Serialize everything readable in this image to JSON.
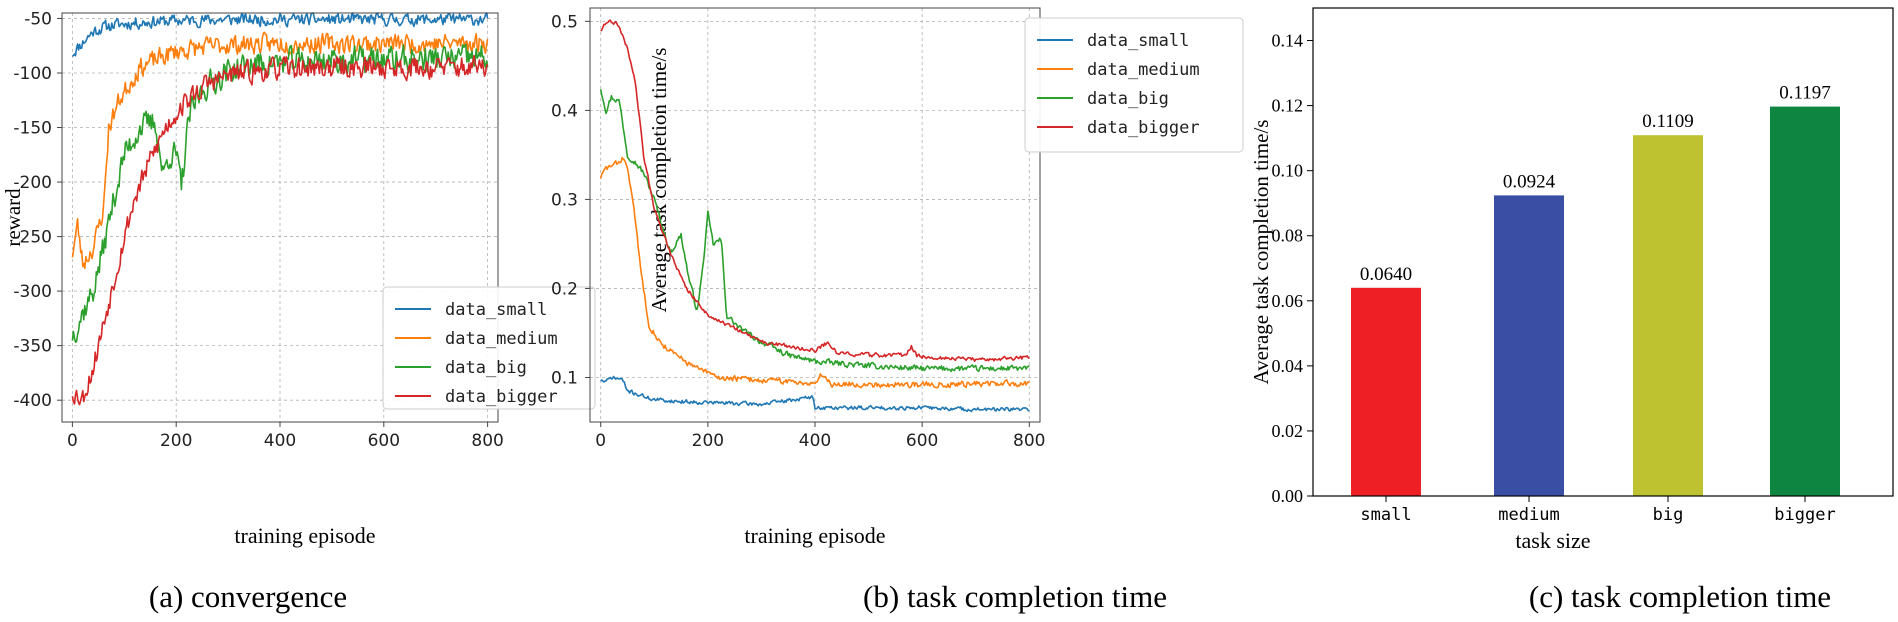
{
  "colors": {
    "data_small": "#1f77b4",
    "data_medium": "#ff7f0e",
    "data_big": "#2ca02c",
    "data_bigger": "#d62728",
    "bar_small": "#ee2026",
    "bar_medium": "#3a4fa3",
    "bar_big": "#bec231",
    "bar_bigger": "#0e8641",
    "grid": "#b0b0b0"
  },
  "captions": [
    "(a) convergence",
    "(b) task completion time",
    "(c) task completion time"
  ],
  "chart_data": [
    {
      "type": "line",
      "xlabel": "training episode",
      "ylabel": "reward",
      "xlim": [
        -20,
        820
      ],
      "ylim": [
        -420,
        -45
      ],
      "xticks": [
        0,
        200,
        400,
        600,
        800
      ],
      "yticks": [
        -50,
        -100,
        -150,
        -200,
        -250,
        -300,
        -350,
        -400
      ],
      "grid": true,
      "legend": "bottom-right",
      "series": [
        {
          "name": "data_small",
          "color_key": "data_small",
          "noise": 5,
          "seed": 11,
          "points": [
            [
              0,
              -82
            ],
            [
              20,
              -72
            ],
            [
              40,
              -62
            ],
            [
              60,
              -58
            ],
            [
              80,
              -56
            ],
            [
              120,
              -54
            ],
            [
              200,
              -52
            ],
            [
              300,
              -51
            ],
            [
              400,
              -51
            ],
            [
              500,
              -51
            ],
            [
              600,
              -51
            ],
            [
              700,
              -51
            ],
            [
              800,
              -51
            ]
          ]
        },
        {
          "name": "data_medium",
          "color_key": "data_medium",
          "noise": 8,
          "seed": 23,
          "points": [
            [
              0,
              -265
            ],
            [
              10,
              -240
            ],
            [
              20,
              -275
            ],
            [
              40,
              -260
            ],
            [
              60,
              -225
            ],
            [
              70,
              -150
            ],
            [
              90,
              -125
            ],
            [
              110,
              -110
            ],
            [
              130,
              -95
            ],
            [
              160,
              -88
            ],
            [
              200,
              -80
            ],
            [
              260,
              -76
            ],
            [
              300,
              -74
            ],
            [
              400,
              -73
            ],
            [
              500,
              -73
            ],
            [
              600,
              -73
            ],
            [
              700,
              -73
            ],
            [
              800,
              -72
            ]
          ]
        },
        {
          "name": "data_big",
          "color_key": "data_big",
          "noise": 11,
          "seed": 37,
          "points": [
            [
              0,
              -340
            ],
            [
              20,
              -320
            ],
            [
              40,
              -300
            ],
            [
              60,
              -260
            ],
            [
              80,
              -215
            ],
            [
              100,
              -175
            ],
            [
              130,
              -150
            ],
            [
              160,
              -145
            ],
            [
              175,
              -195
            ],
            [
              185,
              -175
            ],
            [
              200,
              -175
            ],
            [
              210,
              -205
            ],
            [
              225,
              -140
            ],
            [
              250,
              -115
            ],
            [
              300,
              -98
            ],
            [
              350,
              -92
            ],
            [
              400,
              -90
            ],
            [
              500,
              -88
            ],
            [
              600,
              -88
            ],
            [
              700,
              -87
            ],
            [
              800,
              -86
            ]
          ]
        },
        {
          "name": "data_bigger",
          "color_key": "data_bigger",
          "noise": 9,
          "seed": 53,
          "points": [
            [
              0,
              -392
            ],
            [
              20,
              -398
            ],
            [
              40,
              -370
            ],
            [
              60,
              -330
            ],
            [
              80,
              -290
            ],
            [
              100,
              -250
            ],
            [
              120,
              -215
            ],
            [
              150,
              -180
            ],
            [
              180,
              -150
            ],
            [
              210,
              -130
            ],
            [
              260,
              -110
            ],
            [
              300,
              -102
            ],
            [
              400,
              -96
            ],
            [
              500,
              -95
            ],
            [
              600,
              -95
            ],
            [
              700,
              -95
            ],
            [
              800,
              -95
            ]
          ]
        }
      ]
    },
    {
      "type": "line",
      "xlabel": "training episode",
      "ylabel": "Average task completion time/s",
      "xlim": [
        -20,
        820
      ],
      "ylim": [
        0.05,
        0.515
      ],
      "xticks": [
        0,
        200,
        400,
        600,
        800
      ],
      "yticks": [
        0.1,
        0.2,
        0.3,
        0.4,
        0.5
      ],
      "grid": true,
      "legend": "top-right",
      "series": [
        {
          "name": "data_small",
          "color_key": "data_small",
          "noise": 0.002,
          "seed": 71,
          "points": [
            [
              0,
              0.097
            ],
            [
              10,
              0.095
            ],
            [
              20,
              0.1
            ],
            [
              40,
              0.098
            ],
            [
              50,
              0.085
            ],
            [
              100,
              0.075
            ],
            [
              150,
              0.073
            ],
            [
              200,
              0.072
            ],
            [
              300,
              0.07
            ],
            [
              395,
              0.078
            ],
            [
              400,
              0.066
            ],
            [
              500,
              0.066
            ],
            [
              600,
              0.066
            ],
            [
              700,
              0.064
            ],
            [
              800,
              0.064
            ]
          ]
        },
        {
          "name": "data_medium",
          "color_key": "data_medium",
          "noise": 0.003,
          "seed": 83,
          "points": [
            [
              0,
              0.325
            ],
            [
              10,
              0.335
            ],
            [
              30,
              0.34
            ],
            [
              45,
              0.348
            ],
            [
              60,
              0.3
            ],
            [
              75,
              0.22
            ],
            [
              90,
              0.16
            ],
            [
              110,
              0.14
            ],
            [
              140,
              0.125
            ],
            [
              180,
              0.11
            ],
            [
              220,
              0.1
            ],
            [
              300,
              0.097
            ],
            [
              400,
              0.094
            ],
            [
              415,
              0.104
            ],
            [
              430,
              0.093
            ],
            [
              500,
              0.092
            ],
            [
              600,
              0.092
            ],
            [
              700,
              0.093
            ],
            [
              800,
              0.093
            ]
          ]
        },
        {
          "name": "data_big",
          "color_key": "data_big",
          "noise": 0.003,
          "seed": 97,
          "points": [
            [
              0,
              0.425
            ],
            [
              10,
              0.4
            ],
            [
              20,
              0.415
            ],
            [
              35,
              0.41
            ],
            [
              50,
              0.35
            ],
            [
              60,
              0.345
            ],
            [
              80,
              0.33
            ],
            [
              100,
              0.3
            ],
            [
              130,
              0.24
            ],
            [
              150,
              0.26
            ],
            [
              165,
              0.21
            ],
            [
              180,
              0.175
            ],
            [
              190,
              0.22
            ],
            [
              200,
              0.283
            ],
            [
              210,
              0.25
            ],
            [
              225,
              0.255
            ],
            [
              235,
              0.17
            ],
            [
              260,
              0.155
            ],
            [
              300,
              0.14
            ],
            [
              350,
              0.125
            ],
            [
              400,
              0.118
            ],
            [
              500,
              0.113
            ],
            [
              600,
              0.11
            ],
            [
              700,
              0.11
            ],
            [
              800,
              0.11
            ]
          ]
        },
        {
          "name": "data_bigger",
          "color_key": "data_bigger",
          "noise": 0.002,
          "seed": 109,
          "points": [
            [
              0,
              0.49
            ],
            [
              10,
              0.5
            ],
            [
              30,
              0.498
            ],
            [
              50,
              0.47
            ],
            [
              65,
              0.43
            ],
            [
              80,
              0.35
            ],
            [
              100,
              0.29
            ],
            [
              130,
              0.24
            ],
            [
              160,
              0.2
            ],
            [
              200,
              0.17
            ],
            [
              250,
              0.155
            ],
            [
              300,
              0.14
            ],
            [
              350,
              0.135
            ],
            [
              400,
              0.13
            ],
            [
              425,
              0.14
            ],
            [
              440,
              0.128
            ],
            [
              500,
              0.125
            ],
            [
              570,
              0.125
            ],
            [
              580,
              0.136
            ],
            [
              590,
              0.124
            ],
            [
              700,
              0.12
            ],
            [
              800,
              0.122
            ]
          ]
        }
      ]
    },
    {
      "type": "bar",
      "xlabel": "task size",
      "ylabel": "Average task completion time/s",
      "categories": [
        "small",
        "medium",
        "big",
        "bigger"
      ],
      "values": [
        0.064,
        0.0924,
        0.1109,
        0.1197
      ],
      "value_labels": [
        "0.0640",
        "0.0924",
        "0.1109",
        "0.1197"
      ],
      "color_keys": [
        "bar_small",
        "bar_medium",
        "bar_big",
        "bar_bigger"
      ],
      "ylim": [
        0,
        0.15
      ],
      "yticks": [
        "0.00",
        "0.02",
        "0.04",
        "0.06",
        "0.08",
        "0.10",
        "0.12",
        "0.14"
      ],
      "grid": false
    }
  ]
}
